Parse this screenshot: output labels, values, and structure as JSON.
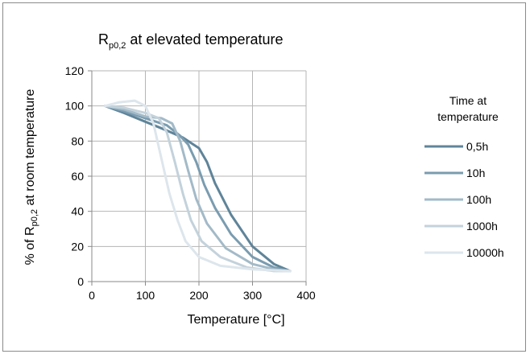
{
  "chart_data": {
    "type": "line",
    "title": {
      "main": "R",
      "sub": "p0,2",
      "rest": " at elevated temperature"
    },
    "xlabel": "Temperature [°C]",
    "ylabel": {
      "pre": "% of R",
      "sub": "p0,2",
      "post": " at room temperature"
    },
    "xlim": [
      0,
      400
    ],
    "ylim": [
      0,
      120
    ],
    "xticks": [
      "0",
      "100",
      "200",
      "300",
      "400"
    ],
    "yticks": [
      "0",
      "20",
      "40",
      "60",
      "80",
      "100",
      "120"
    ],
    "grid": true,
    "legend_title": [
      "Time at",
      "temperature"
    ],
    "legend_position": "right",
    "series": [
      {
        "name": "0,5h",
        "color": "#5f8499",
        "width": 3,
        "x": [
          25,
          60,
          100,
          140,
          170,
          190,
          200,
          215,
          230,
          260,
          300,
          340,
          370
        ],
        "y": [
          100,
          96,
          91,
          86,
          82,
          78,
          76,
          68,
          56,
          38,
          20,
          10,
          6
        ]
      },
      {
        "name": "10h",
        "color": "#7a9cb0",
        "width": 3,
        "x": [
          25,
          60,
          100,
          140,
          165,
          180,
          195,
          210,
          230,
          260,
          300,
          340,
          370
        ],
        "y": [
          100,
          97,
          93,
          89,
          83,
          78,
          68,
          55,
          42,
          27,
          14,
          8,
          6
        ]
      },
      {
        "name": "100h",
        "color": "#a3bac8",
        "width": 3,
        "x": [
          25,
          60,
          100,
          130,
          150,
          165,
          180,
          195,
          215,
          250,
          300,
          340,
          370
        ],
        "y": [
          100,
          98,
          94,
          93,
          90,
          80,
          63,
          47,
          33,
          19,
          10,
          7,
          6
        ]
      },
      {
        "name": "1000h",
        "color": "#c3d2db",
        "width": 3,
        "x": [
          25,
          60,
          100,
          125,
          140,
          155,
          170,
          185,
          205,
          240,
          290,
          340,
          370
        ],
        "y": [
          100,
          99,
          96,
          93,
          85,
          68,
          50,
          35,
          23,
          14,
          8,
          6,
          6
        ]
      },
      {
        "name": "10000h",
        "color": "#dde6ec",
        "width": 3,
        "x": [
          25,
          50,
          80,
          100,
          115,
          130,
          145,
          160,
          175,
          200,
          240,
          300,
          370
        ],
        "y": [
          100,
          102,
          103,
          100,
          90,
          70,
          50,
          35,
          23,
          14,
          9,
          7,
          6
        ]
      }
    ]
  }
}
